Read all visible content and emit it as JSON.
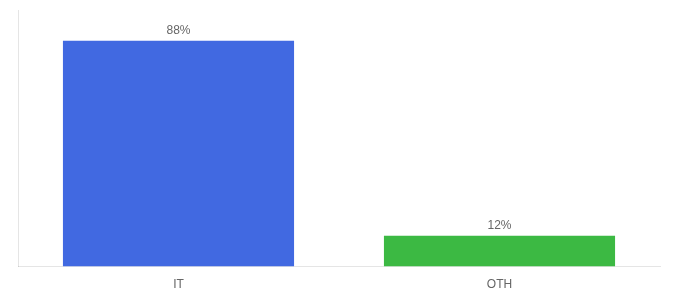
{
  "chart_data": {
    "type": "bar",
    "categories": [
      "IT",
      "OTH"
    ],
    "values": [
      88,
      12
    ],
    "value_labels": [
      "88%",
      "12%"
    ],
    "colors": [
      "#4169E1",
      "#3CB943"
    ],
    "ylim": [
      0,
      100
    ],
    "grid": false,
    "data_labels": true,
    "tick_labels": "x"
  }
}
